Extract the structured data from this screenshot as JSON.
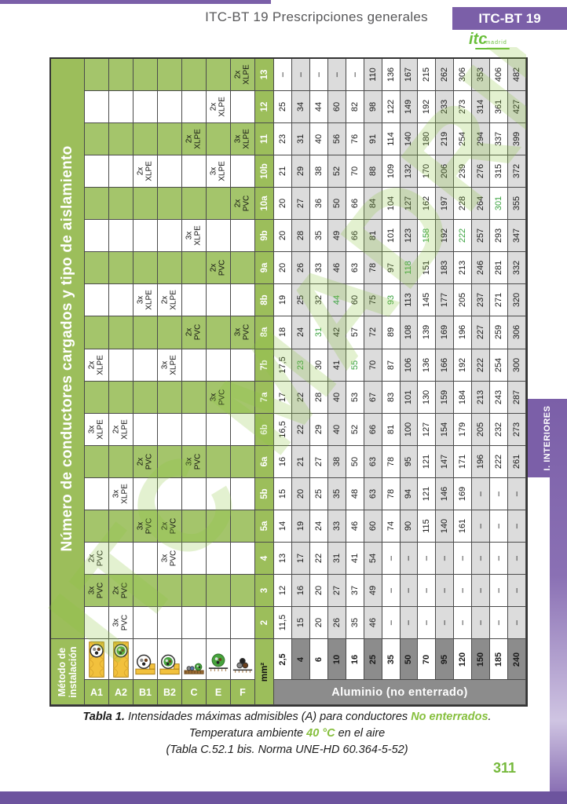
{
  "header": {
    "doc_title": "ITC-BT 19 Prescripciones generales",
    "badge": "ITC-BT 19",
    "logo_text": "itc",
    "logo_sub": "madrid"
  },
  "sidebar": {
    "tab_label": "I. INTERIORES"
  },
  "page_number": "311",
  "watermark": "ITC MADRID",
  "colors": {
    "green_header": "#9cbe5b",
    "green_row": "#a4c56b",
    "green_text": "#3aa23f",
    "purple": "#7b5fa8",
    "dark_gray": "#8c8c8c",
    "light_gray": "#dcdcdc"
  },
  "caption": {
    "line1_bold": "Tabla 1.",
    "line1_text": " Intensidades máximas admisibles (A) para conductores ",
    "line1_highlight": "No enterrados",
    "line1_end": ".",
    "line2_text": "Temperatura ambiente ",
    "line2_highlight": "40 °C",
    "line2_end": " en el aire",
    "line3": "(Tabla C.52.1 bis. Norma UNE-HD 60.364-5-52)"
  },
  "table": {
    "title": "Número de conductores cargados y tipo de aislamiento",
    "corner_lines": [
      "Método de",
      "instalación"
    ],
    "mm2": "mm²",
    "banner": "Aluminio (no enterrado)",
    "methods": [
      {
        "id": "A1",
        "icon": "conduit-in-insulated-wall-icon"
      },
      {
        "id": "A2",
        "icon": "multicore-in-insulated-wall-icon"
      },
      {
        "id": "B1",
        "icon": "conduit-on-wall-icon"
      },
      {
        "id": "B2",
        "icon": "multicore-in-conduit-on-wall-icon"
      },
      {
        "id": "C",
        "icon": "cables-on-wall-icon"
      },
      {
        "id": "E",
        "icon": "multicore-on-tray-icon"
      },
      {
        "id": "F",
        "icon": "single-core-trefoil-icon"
      }
    ],
    "sizes": [
      "2,5",
      "4",
      "6",
      "10",
      "16",
      "25",
      "35",
      "50",
      "70",
      "95",
      "120",
      "150",
      "185",
      "240"
    ],
    "rows": [
      {
        "id": "13",
        "ins": {
          "F": "2x XLPE"
        },
        "values": [
          "–",
          "–",
          "–",
          "–",
          "–",
          "110",
          "136",
          "167",
          "215",
          "262",
          "306",
          "353",
          "406",
          "482"
        ],
        "green": []
      },
      {
        "id": "12",
        "ins": {
          "E": "2x XLPE"
        },
        "values": [
          "25",
          "34",
          "44",
          "60",
          "82",
          "98",
          "122",
          "149",
          "192",
          "233",
          "273",
          "314",
          "361",
          "427"
        ],
        "green": []
      },
      {
        "id": "11",
        "ins": {
          "C": "2x XLPE",
          "F": "3x XLPE"
        },
        "values": [
          "23",
          "31",
          "40",
          "56",
          "76",
          "91",
          "114",
          "140",
          "180",
          "219",
          "254",
          "294",
          "337",
          "399"
        ],
        "green": []
      },
      {
        "id": "10b",
        "ins": {
          "B1": "2x XLPE",
          "E": "3x XLPE"
        },
        "values": [
          "21",
          "29",
          "38",
          "52",
          "70",
          "88",
          "109",
          "132",
          "170",
          "206",
          "239",
          "276",
          "315",
          "372"
        ],
        "green": []
      },
      {
        "id": "10a",
        "ins": {
          "F": "2x PVC"
        },
        "values": [
          "20",
          "27",
          "36",
          "50",
          "66",
          "84",
          "104",
          "127",
          "162",
          "197",
          "228",
          "264",
          "301",
          "355"
        ],
        "green": [
          12
        ]
      },
      {
        "id": "9b",
        "ins": {
          "C": "3x XLPE"
        },
        "values": [
          "20",
          "28",
          "35",
          "49",
          "66",
          "81",
          "101",
          "123",
          "158",
          "192",
          "222",
          "257",
          "293",
          "347"
        ],
        "green": [
          8,
          10
        ]
      },
      {
        "id": "9a",
        "ins": {
          "E": "2x PVC"
        },
        "values": [
          "20",
          "26",
          "33",
          "46",
          "63",
          "78",
          "97",
          "118",
          "151",
          "183",
          "213",
          "246",
          "281",
          "332"
        ],
        "green": [
          7
        ]
      },
      {
        "id": "8b",
        "ins": {
          "B1": "3x XLPE",
          "B2": "2x XLPE"
        },
        "values": [
          "19",
          "25",
          "32",
          "44",
          "60",
          "75",
          "93",
          "113",
          "145",
          "177",
          "205",
          "237",
          "271",
          "320"
        ],
        "green": [
          3,
          6
        ]
      },
      {
        "id": "8a",
        "ins": {
          "C": "2x PVC",
          "F": "3x PVC"
        },
        "values": [
          "18",
          "24",
          "31",
          "42",
          "57",
          "72",
          "89",
          "108",
          "139",
          "169",
          "196",
          "227",
          "259",
          "306"
        ],
        "green": [
          2
        ]
      },
      {
        "id": "7b",
        "ins": {
          "A1": "2x XLPE",
          "B2": "3x XLPE"
        },
        "values": [
          "17,5",
          "23",
          "30",
          "41",
          "55",
          "70",
          "87",
          "106",
          "136",
          "166",
          "192",
          "222",
          "254",
          "300"
        ],
        "green": [
          1,
          4
        ]
      },
      {
        "id": "7a",
        "ins": {
          "E": "3x PVC"
        },
        "values": [
          "17",
          "22",
          "28",
          "40",
          "53",
          "67",
          "83",
          "101",
          "130",
          "159",
          "184",
          "213",
          "243",
          "287"
        ],
        "green": []
      },
      {
        "id": "6b",
        "ins": {
          "A1": "3x XLPE",
          "A2": "2x XLPE"
        },
        "values": [
          "16,5",
          "22",
          "29",
          "40",
          "52",
          "66",
          "81",
          "100",
          "127",
          "154",
          "179",
          "205",
          "232",
          "273"
        ],
        "green": []
      },
      {
        "id": "6a",
        "ins": {
          "B1": "2x PVC",
          "C": "3x PVC"
        },
        "values": [
          "16",
          "21",
          "27",
          "38",
          "50",
          "63",
          "78",
          "95",
          "121",
          "147",
          "171",
          "196",
          "222",
          "261"
        ],
        "green": []
      },
      {
        "id": "5b",
        "ins": {
          "A2": "3x XLPE"
        },
        "values": [
          "15",
          "20",
          "25",
          "35",
          "48",
          "63",
          "78",
          "94",
          "121",
          "146",
          "169",
          "–",
          "–",
          "–"
        ],
        "green": []
      },
      {
        "id": "5a",
        "ins": {
          "B1": "3x PVC",
          "B2": "2x PVC"
        },
        "values": [
          "14",
          "19",
          "24",
          "33",
          "46",
          "60",
          "74",
          "90",
          "115",
          "140",
          "161",
          "–",
          "–",
          "–"
        ],
        "green": []
      },
      {
        "id": "4",
        "ins": {
          "A1": "2x PVC",
          "B2": "3x PVC"
        },
        "values": [
          "13",
          "17",
          "22",
          "31",
          "41",
          "54",
          "–",
          "–",
          "–",
          "–",
          "–",
          "–",
          "–",
          "–"
        ],
        "green": []
      },
      {
        "id": "3",
        "ins": {
          "A1": "3x PVC",
          "A2": "2x PVC"
        },
        "values": [
          "12",
          "16",
          "20",
          "27",
          "37",
          "49",
          "–",
          "–",
          "–",
          "–",
          "–",
          "–",
          "–",
          "–"
        ],
        "green": []
      },
      {
        "id": "2",
        "ins": {
          "A2": "3x PVC"
        },
        "values": [
          "11,5",
          "15",
          "20",
          "26",
          "35",
          "46",
          "–",
          "–",
          "–",
          "–",
          "–",
          "–",
          "–",
          "–"
        ],
        "green": []
      }
    ]
  }
}
